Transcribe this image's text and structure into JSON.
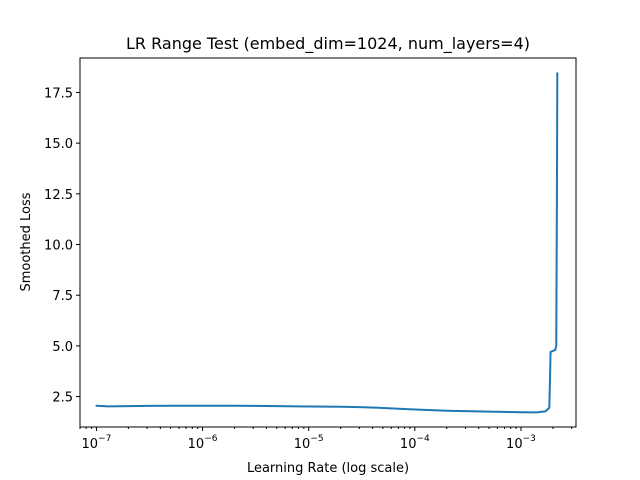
{
  "chart_data": {
    "type": "line",
    "title": "LR Range Test (embed_dim=1024, num_layers=4)",
    "xlabel": "Learning Rate (log scale)",
    "ylabel": "Smoothed Loss",
    "xscale": "log",
    "xlim": [
      7e-08,
      0.0033
    ],
    "ylim": [
      1.0,
      19.2
    ],
    "grid": false,
    "x_ticks": [
      {
        "value": 1e-07,
        "base": "10",
        "exp": "−7"
      },
      {
        "value": 1e-06,
        "base": "10",
        "exp": "−6"
      },
      {
        "value": 1e-05,
        "base": "10",
        "exp": "−5"
      },
      {
        "value": 0.0001,
        "base": "10",
        "exp": "−4"
      },
      {
        "value": 0.001,
        "base": "10",
        "exp": "−3"
      }
    ],
    "y_ticks": [
      {
        "value": 2.5,
        "label": "2.5"
      },
      {
        "value": 5.0,
        "label": "5.0"
      },
      {
        "value": 7.5,
        "label": "7.5"
      },
      {
        "value": 10.0,
        "label": "10.0"
      },
      {
        "value": 12.5,
        "label": "12.5"
      },
      {
        "value": 15.0,
        "label": "15.0"
      },
      {
        "value": 17.5,
        "label": "17.5"
      }
    ],
    "series": [
      {
        "color": "#1f77b4",
        "x": [
          1e-07,
          1.3e-07,
          2e-07,
          3e-07,
          5e-07,
          1e-06,
          2e-06,
          3e-06,
          5e-06,
          1e-05,
          2e-05,
          3e-05,
          5e-05,
          0.0001,
          0.0002,
          0.0005,
          0.001,
          0.0014,
          0.0017,
          0.00185,
          0.00188,
          0.0019,
          0.002,
          0.0021,
          0.00215,
          0.00218,
          0.0022
        ],
        "y": [
          2.05,
          2.02,
          2.03,
          2.04,
          2.05,
          2.05,
          2.05,
          2.04,
          2.03,
          2.01,
          2.0,
          1.98,
          1.94,
          1.86,
          1.8,
          1.76,
          1.73,
          1.72,
          1.77,
          1.95,
          3.5,
          4.7,
          4.75,
          4.8,
          5.0,
          12.0,
          18.45
        ]
      }
    ]
  }
}
